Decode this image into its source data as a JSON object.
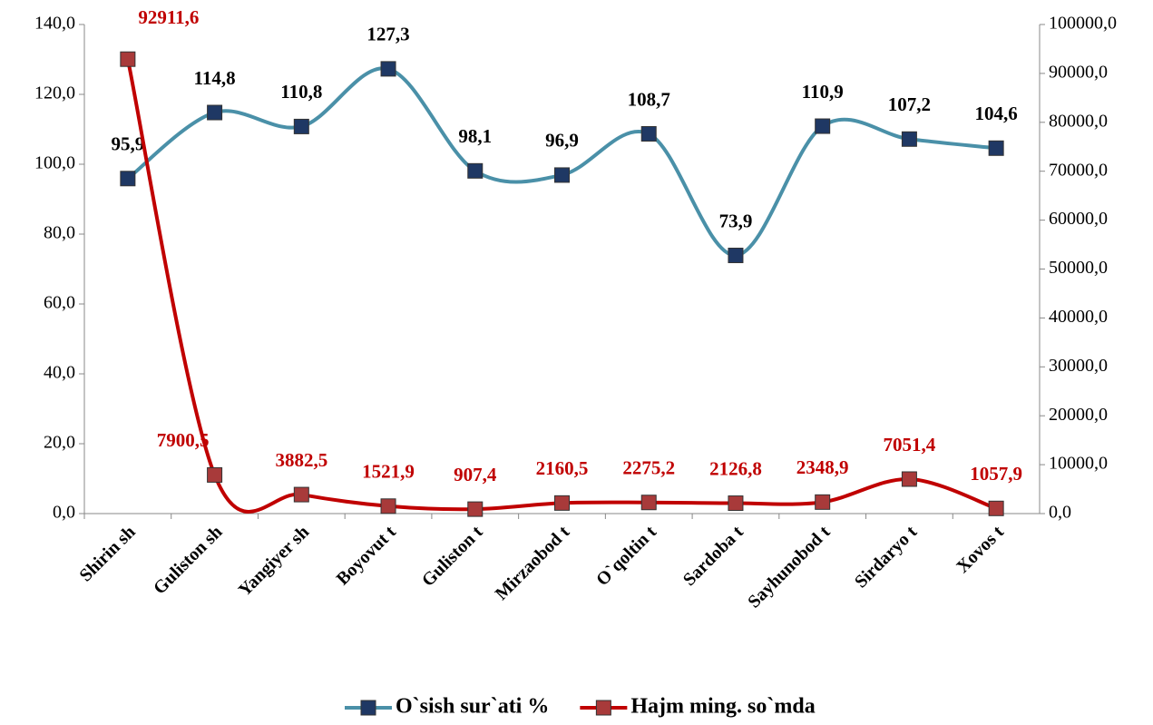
{
  "chart_data": {
    "type": "line",
    "categories": [
      "Shirin sh",
      "Guliston sh",
      "Yangiyer sh",
      "Boyovut t",
      "Guliston t",
      "Mirzaobod t",
      "O`qoltin t",
      "Sardoba t",
      "Sayhunobod t",
      "Sirdaryo t",
      "Xovos t"
    ],
    "series": [
      {
        "name": "O`sish sur`ati %",
        "color": "#4a90a8",
        "marker_color": "#1f3864",
        "label_color": "#000000",
        "values": [
          95.9,
          114.8,
          110.8,
          127.3,
          98.1,
          96.9,
          108.7,
          73.9,
          110.9,
          107.2,
          104.6
        ],
        "value_labels": [
          "95,9",
          "114,8",
          "110,8",
          "127,3",
          "98,1",
          "96,9",
          "108,7",
          "73,9",
          "110,9",
          "107,2",
          "104,6"
        ]
      },
      {
        "name": "Hajm ming. so`mda",
        "color": "#c00000",
        "marker_color": "#a83a3a",
        "label_color": "#c00000",
        "axis": "y2",
        "values": [
          92911.6,
          7900.5,
          3882.5,
          1521.9,
          907.4,
          2160.5,
          2275.2,
          2126.8,
          2348.9,
          7051.4,
          1057.9
        ],
        "value_labels": [
          "92911,6",
          "7900,5",
          "3882,5",
          "1521,9",
          "907,4",
          "2160,5",
          "2275,2",
          "2126,8",
          "2348,9",
          "7051,4",
          "1057,9"
        ]
      }
    ],
    "ylim": [
      0,
      140
    ],
    "yticks": [
      {
        "value": 0,
        "label": "0,0"
      },
      {
        "value": 20,
        "label": "20,0"
      },
      {
        "value": 40,
        "label": "40,0"
      },
      {
        "value": 60,
        "label": "60,0"
      },
      {
        "value": 80,
        "label": "80,0"
      },
      {
        "value": 100,
        "label": "100,0"
      },
      {
        "value": 120,
        "label": "120,0"
      },
      {
        "value": 140,
        "label": "140,0"
      }
    ],
    "y2lim": [
      0,
      100000
    ],
    "y2ticks": [
      {
        "value": 0,
        "label": "0,0"
      },
      {
        "value": 10000,
        "label": "10000,0"
      },
      {
        "value": 20000,
        "label": "20000,0"
      },
      {
        "value": 30000,
        "label": "30000,0"
      },
      {
        "value": 40000,
        "label": "40000,0"
      },
      {
        "value": 50000,
        "label": "50000,0"
      },
      {
        "value": 60000,
        "label": "60000,0"
      },
      {
        "value": 70000,
        "label": "70000,0"
      },
      {
        "value": 80000,
        "label": "80000,0"
      },
      {
        "value": 90000,
        "label": "90000,0"
      },
      {
        "value": 100000,
        "label": "100000,0"
      }
    ],
    "smooth": true,
    "legend": "bottom"
  }
}
